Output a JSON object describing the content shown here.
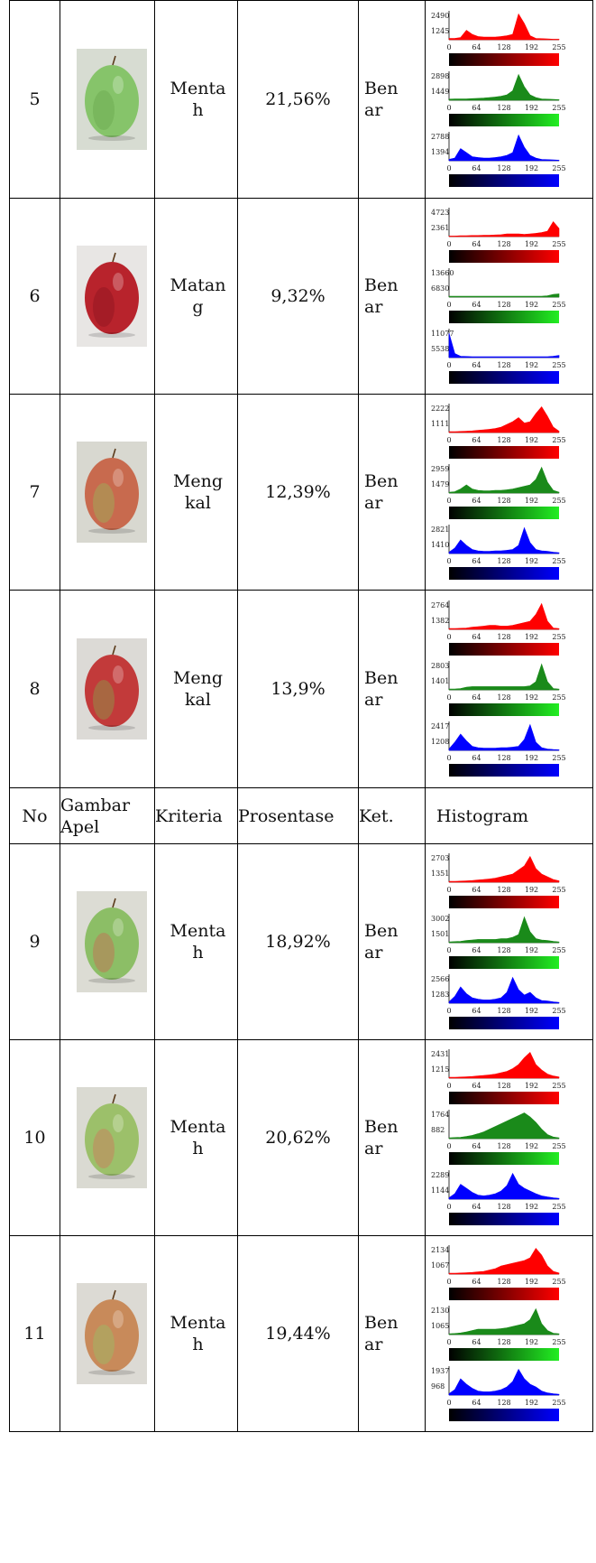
{
  "header": {
    "no": "No",
    "gambar": "Gambar Apel",
    "kriteria": "Kriteria",
    "prosentase": "Prosentase",
    "ket": "Ket.",
    "histogram": "Histogram"
  },
  "axis_ticks": [
    "0",
    "64",
    "128",
    "192",
    "255"
  ],
  "colors": {
    "red": "#ff0000",
    "green": "#1a8a1a",
    "blue": "#0000ff",
    "bar_green": "#22ee22",
    "bar_blue": "#0000ff"
  },
  "rows_top": [
    {
      "no": "5",
      "kriteria": "Mentah",
      "krit_l1": "Menta",
      "krit_l2": "h",
      "prosentase": "21,56%",
      "ket_l1": "Ben",
      "ket_l2": "ar",
      "apple": {
        "color": "#86c46a",
        "shade": "#6aa84e",
        "bg": "#d7dcd2"
      },
      "histo": {
        "r_max": "2490",
        "r_mid": "1245",
        "g_max": "2898",
        "g_mid": "1449",
        "b_max": "2788",
        "b_mid": "1394",
        "r": [
          0.05,
          0.05,
          0.08,
          0.35,
          0.2,
          0.12,
          0.1,
          0.1,
          0.1,
          0.12,
          0.15,
          0.2,
          0.95,
          0.6,
          0.15,
          0.05,
          0.04,
          0.03,
          0.02,
          0.02
        ],
        "g": [
          0.04,
          0.05,
          0.05,
          0.05,
          0.06,
          0.07,
          0.08,
          0.1,
          0.12,
          0.15,
          0.2,
          0.35,
          0.95,
          0.5,
          0.2,
          0.1,
          0.05,
          0.04,
          0.03,
          0.02
        ],
        "b": [
          0.05,
          0.1,
          0.45,
          0.3,
          0.15,
          0.12,
          0.1,
          0.1,
          0.12,
          0.15,
          0.2,
          0.3,
          0.95,
          0.5,
          0.2,
          0.1,
          0.05,
          0.04,
          0.03,
          0.02
        ]
      }
    },
    {
      "no": "6",
      "kriteria": "Matang",
      "krit_l1": "Matan",
      "krit_l2": "g",
      "prosentase": "9,32%",
      "ket_l1": "Ben",
      "ket_l2": "ar",
      "apple": {
        "color": "#b8232c",
        "shade": "#8c1520",
        "bg": "#e8e6e4"
      },
      "histo": {
        "r_max": "4723",
        "r_mid": "2361",
        "g_max": "13660",
        "g_mid": "6830",
        "b_max": "11077",
        "b_mid": "5538",
        "r": [
          0.02,
          0.02,
          0.03,
          0.03,
          0.04,
          0.04,
          0.05,
          0.05,
          0.06,
          0.07,
          0.1,
          0.1,
          0.1,
          0.08,
          0.1,
          0.12,
          0.15,
          0.2,
          0.55,
          0.3
        ],
        "g": [
          0.03,
          0.03,
          0.03,
          0.03,
          0.03,
          0.03,
          0.03,
          0.03,
          0.03,
          0.03,
          0.03,
          0.03,
          0.03,
          0.03,
          0.03,
          0.03,
          0.03,
          0.05,
          0.1,
          0.12
        ],
        "b": [
          0.9,
          0.15,
          0.05,
          0.04,
          0.03,
          0.03,
          0.03,
          0.03,
          0.03,
          0.03,
          0.03,
          0.03,
          0.03,
          0.03,
          0.03,
          0.03,
          0.03,
          0.03,
          0.05,
          0.08
        ]
      }
    },
    {
      "no": "7",
      "kriteria": "Mengkal",
      "krit_l1": "Meng",
      "krit_l2": "kal",
      "prosentase": "12,39%",
      "ket_l1": "Ben",
      "ket_l2": "ar",
      "apple": {
        "color": "#c86a4e",
        "shade": "#9ab45a",
        "bg": "#d8d8d0"
      },
      "histo": {
        "r_max": "2222",
        "r_mid": "1111",
        "g_max": "2959",
        "g_mid": "1479",
        "b_max": "2821",
        "b_mid": "1410",
        "r": [
          0.03,
          0.03,
          0.04,
          0.05,
          0.06,
          0.08,
          0.1,
          0.12,
          0.15,
          0.2,
          0.3,
          0.4,
          0.55,
          0.35,
          0.4,
          0.7,
          0.95,
          0.6,
          0.2,
          0.05
        ],
        "g": [
          0.03,
          0.05,
          0.15,
          0.3,
          0.15,
          0.1,
          0.08,
          0.08,
          0.1,
          0.1,
          0.12,
          0.15,
          0.2,
          0.25,
          0.3,
          0.5,
          0.95,
          0.4,
          0.1,
          0.03
        ],
        "b": [
          0.05,
          0.2,
          0.5,
          0.3,
          0.15,
          0.1,
          0.08,
          0.08,
          0.1,
          0.1,
          0.12,
          0.15,
          0.3,
          0.95,
          0.4,
          0.15,
          0.1,
          0.08,
          0.05,
          0.03
        ]
      }
    },
    {
      "no": "8",
      "kriteria": "Mengkal",
      "krit_l1": "Meng",
      "krit_l2": "kal",
      "prosentase": "13,9%",
      "ket_l1": "Ben",
      "ket_l2": "ar",
      "apple": {
        "color": "#c23a3a",
        "shade": "#8aa04c",
        "bg": "#dcdad6"
      },
      "histo": {
        "r_max": "2764",
        "r_mid": "1382",
        "g_max": "2803",
        "g_mid": "1401",
        "b_max": "2417",
        "b_mid": "1208",
        "r": [
          0.03,
          0.03,
          0.04,
          0.05,
          0.08,
          0.1,
          0.12,
          0.15,
          0.15,
          0.12,
          0.12,
          0.15,
          0.2,
          0.25,
          0.3,
          0.55,
          0.95,
          0.3,
          0.05,
          0.03
        ],
        "g": [
          0.03,
          0.03,
          0.05,
          0.1,
          0.12,
          0.12,
          0.12,
          0.12,
          0.12,
          0.12,
          0.12,
          0.12,
          0.12,
          0.12,
          0.15,
          0.3,
          0.95,
          0.3,
          0.05,
          0.03
        ],
        "b": [
          0.05,
          0.3,
          0.6,
          0.35,
          0.15,
          0.1,
          0.08,
          0.08,
          0.08,
          0.1,
          0.1,
          0.12,
          0.15,
          0.4,
          0.95,
          0.3,
          0.1,
          0.05,
          0.03,
          0.02
        ]
      }
    }
  ],
  "rows_bottom": [
    {
      "no": "9",
      "kriteria": "Mentah",
      "krit_l1": "Menta",
      "krit_l2": "h",
      "prosentase": "18,92%",
      "ket_l1": "Ben",
      "ket_l2": "ar",
      "apple": {
        "color": "#8cbe66",
        "shade": "#c86a52",
        "bg": "#dcdcd4"
      },
      "histo": {
        "r_max": "2703",
        "r_mid": "1351",
        "g_max": "3002",
        "g_mid": "1501",
        "b_max": "2566",
        "b_mid": "1283",
        "r": [
          0.03,
          0.03,
          0.04,
          0.05,
          0.06,
          0.08,
          0.1,
          0.12,
          0.15,
          0.2,
          0.25,
          0.3,
          0.45,
          0.6,
          0.95,
          0.5,
          0.3,
          0.2,
          0.1,
          0.05
        ],
        "g": [
          0.03,
          0.04,
          0.05,
          0.08,
          0.1,
          0.12,
          0.12,
          0.12,
          0.12,
          0.15,
          0.15,
          0.2,
          0.3,
          0.95,
          0.4,
          0.15,
          0.1,
          0.08,
          0.05,
          0.03
        ],
        "b": [
          0.05,
          0.25,
          0.6,
          0.35,
          0.2,
          0.15,
          0.12,
          0.12,
          0.15,
          0.2,
          0.4,
          0.95,
          0.5,
          0.3,
          0.4,
          0.2,
          0.1,
          0.08,
          0.05,
          0.03
        ]
      }
    },
    {
      "no": "10",
      "kriteria": "Mentah",
      "krit_l1": "Menta",
      "krit_l2": "h",
      "prosentase": "20,62%",
      "ket_l1": "Ben",
      "ket_l2": "ar",
      "apple": {
        "color": "#9cc06a",
        "shade": "#d0785a",
        "bg": "#dadad2"
      },
      "histo": {
        "r_max": "2431",
        "r_mid": "1215",
        "g_max": "1764",
        "g_mid": "882",
        "b_max": "2289",
        "b_mid": "1144",
        "r": [
          0.03,
          0.03,
          0.04,
          0.05,
          0.06,
          0.08,
          0.1,
          0.12,
          0.15,
          0.2,
          0.25,
          0.35,
          0.5,
          0.75,
          0.95,
          0.5,
          0.3,
          0.15,
          0.08,
          0.04
        ],
        "g": [
          0.03,
          0.04,
          0.05,
          0.08,
          0.12,
          0.18,
          0.25,
          0.35,
          0.45,
          0.55,
          0.65,
          0.75,
          0.85,
          0.95,
          0.8,
          0.6,
          0.35,
          0.15,
          0.06,
          0.03
        ],
        "b": [
          0.05,
          0.2,
          0.55,
          0.4,
          0.25,
          0.15,
          0.12,
          0.15,
          0.2,
          0.3,
          0.5,
          0.95,
          0.55,
          0.4,
          0.3,
          0.2,
          0.12,
          0.08,
          0.05,
          0.03
        ]
      }
    },
    {
      "no": "11",
      "kriteria": "Mentah",
      "krit_l1": "Menta",
      "krit_l2": "h",
      "prosentase": "19,44%",
      "ket_l1": "Ben",
      "ket_l2": "ar",
      "apple": {
        "color": "#c88a5a",
        "shade": "#9abc66",
        "bg": "#dcdad4"
      },
      "histo": {
        "r_max": "2134",
        "r_mid": "1067",
        "g_max": "2130",
        "g_mid": "1065",
        "b_max": "1937",
        "b_mid": "968",
        "r": [
          0.03,
          0.03,
          0.04,
          0.05,
          0.06,
          0.08,
          0.1,
          0.15,
          0.2,
          0.3,
          0.35,
          0.4,
          0.45,
          0.5,
          0.6,
          0.95,
          0.7,
          0.3,
          0.1,
          0.04
        ],
        "g": [
          0.03,
          0.04,
          0.06,
          0.1,
          0.15,
          0.2,
          0.2,
          0.2,
          0.2,
          0.22,
          0.25,
          0.3,
          0.35,
          0.4,
          0.55,
          0.95,
          0.4,
          0.15,
          0.05,
          0.03
        ],
        "b": [
          0.05,
          0.2,
          0.6,
          0.4,
          0.25,
          0.15,
          0.12,
          0.12,
          0.15,
          0.2,
          0.3,
          0.5,
          0.95,
          0.6,
          0.4,
          0.3,
          0.15,
          0.08,
          0.05,
          0.03
        ]
      }
    }
  ]
}
